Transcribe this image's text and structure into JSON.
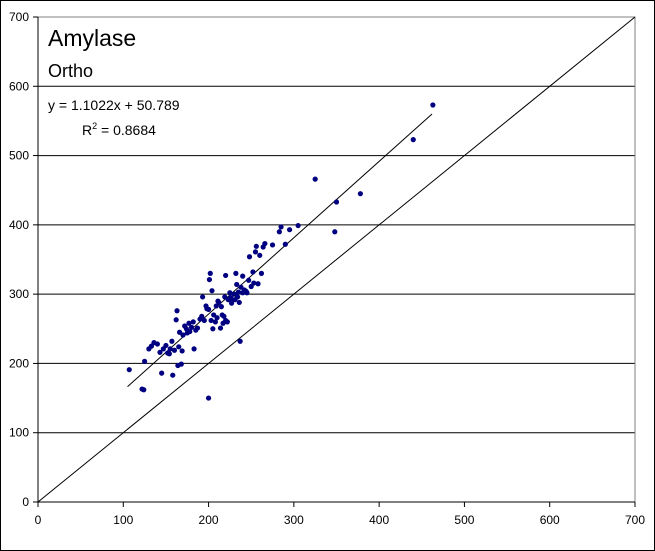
{
  "chart_data": {
    "type": "scatter",
    "title": "Amylase",
    "subtitle": "Ortho",
    "xlim": [
      0,
      700
    ],
    "ylim": [
      0,
      700
    ],
    "x_ticks": [
      0,
      100,
      200,
      300,
      400,
      500,
      600,
      700
    ],
    "y_ticks": [
      0,
      100,
      200,
      300,
      400,
      500,
      600,
      700
    ],
    "x_tick_labels": [
      "0",
      "100",
      "200",
      "300",
      "400",
      "500",
      "600",
      "700"
    ],
    "y_tick_labels": [
      "0",
      "100",
      "200",
      "300",
      "400",
      "500",
      "600",
      "700"
    ],
    "grid": "horizontal",
    "marker_color": "#000080",
    "line_color": "#000000",
    "identity_line": {
      "x": [
        0,
        700
      ],
      "y": [
        0,
        700
      ]
    },
    "trendline": {
      "slope": 1.1022,
      "intercept": 50.789,
      "x_range": [
        105,
        462
      ],
      "equation": "y = 1.1022x + 50.789",
      "r2_label": "R",
      "r2_superscript": "2",
      "r2_value": " = 0.8684"
    },
    "points": [
      [
        107,
        191
      ],
      [
        122,
        163
      ],
      [
        124,
        162
      ],
      [
        125,
        203
      ],
      [
        130,
        221
      ],
      [
        133,
        225
      ],
      [
        136,
        230
      ],
      [
        140,
        228
      ],
      [
        143,
        216
      ],
      [
        145,
        186
      ],
      [
        147,
        221
      ],
      [
        150,
        226
      ],
      [
        152,
        215
      ],
      [
        154,
        214
      ],
      [
        155,
        221
      ],
      [
        157,
        232
      ],
      [
        158,
        183
      ],
      [
        160,
        219
      ],
      [
        162,
        263
      ],
      [
        163,
        276
      ],
      [
        164,
        197
      ],
      [
        165,
        224
      ],
      [
        166,
        245
      ],
      [
        168,
        199
      ],
      [
        169,
        218
      ],
      [
        170,
        241
      ],
      [
        172,
        254
      ],
      [
        174,
        250
      ],
      [
        175,
        244
      ],
      [
        177,
        258
      ],
      [
        178,
        246
      ],
      [
        180,
        252
      ],
      [
        182,
        260
      ],
      [
        183,
        221
      ],
      [
        185,
        248
      ],
      [
        187,
        251
      ],
      [
        190,
        264
      ],
      [
        192,
        268
      ],
      [
        193,
        296
      ],
      [
        195,
        262
      ],
      [
        197,
        283
      ],
      [
        198,
        279
      ],
      [
        200,
        150
      ],
      [
        200,
        278
      ],
      [
        201,
        321
      ],
      [
        202,
        330
      ],
      [
        203,
        262
      ],
      [
        204,
        305
      ],
      [
        205,
        250
      ],
      [
        206,
        270
      ],
      [
        208,
        260
      ],
      [
        209,
        283
      ],
      [
        210,
        266
      ],
      [
        211,
        290
      ],
      [
        212,
        288
      ],
      [
        214,
        251
      ],
      [
        215,
        282
      ],
      [
        216,
        270
      ],
      [
        217,
        258
      ],
      [
        218,
        268
      ],
      [
        219,
        296
      ],
      [
        220,
        262
      ],
      [
        220,
        327
      ],
      [
        222,
        260
      ],
      [
        223,
        292
      ],
      [
        225,
        302
      ],
      [
        226,
        295
      ],
      [
        227,
        287
      ],
      [
        228,
        292
      ],
      [
        230,
        300
      ],
      [
        231,
        292
      ],
      [
        232,
        330
      ],
      [
        233,
        314
      ],
      [
        234,
        296
      ],
      [
        235,
        303
      ],
      [
        236,
        288
      ],
      [
        237,
        232
      ],
      [
        238,
        310
      ],
      [
        240,
        326
      ],
      [
        240,
        302
      ],
      [
        242,
        306
      ],
      [
        244,
        304
      ],
      [
        245,
        302
      ],
      [
        247,
        320
      ],
      [
        248,
        354
      ],
      [
        250,
        311
      ],
      [
        252,
        332
      ],
      [
        253,
        316
      ],
      [
        255,
        361
      ],
      [
        256,
        369
      ],
      [
        258,
        315
      ],
      [
        260,
        356
      ],
      [
        262,
        330
      ],
      [
        264,
        368
      ],
      [
        266,
        373
      ],
      [
        275,
        371
      ],
      [
        283,
        390
      ],
      [
        285,
        397
      ],
      [
        290,
        372
      ],
      [
        295,
        393
      ],
      [
        305,
        399
      ],
      [
        325,
        466
      ],
      [
        348,
        390
      ],
      [
        350,
        433
      ],
      [
        378,
        445
      ],
      [
        440,
        523
      ],
      [
        463,
        573
      ]
    ]
  }
}
